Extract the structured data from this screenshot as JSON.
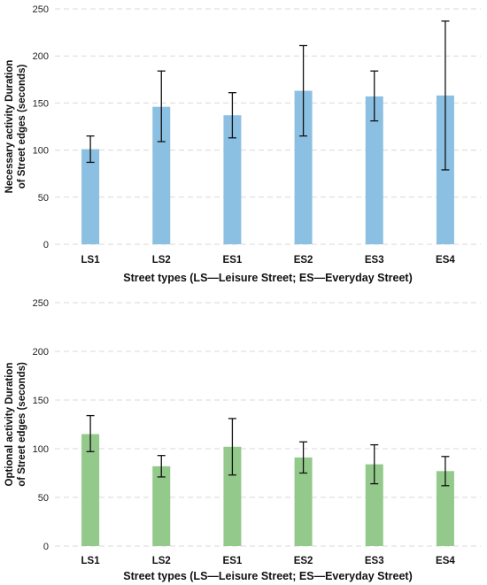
{
  "chart_data": [
    {
      "type": "bar",
      "categories": [
        "LS1",
        "LS2",
        "ES1",
        "ES2",
        "ES3",
        "ES4"
      ],
      "values": [
        101,
        146,
        137,
        163,
        157,
        158
      ],
      "error_low": [
        87,
        109,
        113,
        115,
        131,
        79
      ],
      "error_high": [
        115,
        184,
        161,
        211,
        184,
        237
      ],
      "xlabel": "Street types (LS—Leisure Street; ES—Everyday Street)",
      "ylabel_lines": [
        "Necessary activity Duration",
        "of Street edges (seconds)"
      ],
      "ylim": [
        0,
        250
      ],
      "yticks": [
        0,
        50,
        100,
        150,
        200,
        250
      ],
      "grid": true,
      "bar_color": "#8cc0e2"
    },
    {
      "type": "bar",
      "categories": [
        "LS1",
        "LS2",
        "ES1",
        "ES2",
        "ES3",
        "ES4"
      ],
      "values": [
        115,
        82,
        102,
        91,
        84,
        77
      ],
      "error_low": [
        97,
        71,
        73,
        75,
        64,
        62
      ],
      "error_high": [
        134,
        93,
        131,
        107,
        104,
        92
      ],
      "xlabel": "Street types (LS—Leisure Street; ES—Everyday Street)",
      "ylabel_lines": [
        "Optional activity Duration",
        "of Street edges (seconds)"
      ],
      "ylim": [
        0,
        250
      ],
      "yticks": [
        0,
        50,
        100,
        150,
        200,
        250
      ],
      "grid": true,
      "bar_color": "#93c98a"
    }
  ]
}
